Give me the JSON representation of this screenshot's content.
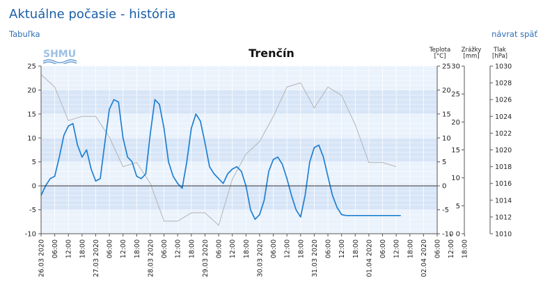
{
  "page": {
    "title": "Aktuálne počasie - história",
    "link_table": "Tabuľka",
    "link_back": "návrat späť",
    "logo_text": "SHMU"
  },
  "colors": {
    "title": "#1a5ea8",
    "link": "#2f6db5",
    "temperature": "#1e7fd0",
    "pressure": "#b4b4b4",
    "band_light": "#eaf2fc",
    "band_dark": "#d7e5f7"
  },
  "chart_data": {
    "type": "line",
    "title": "Trenčín",
    "axes": {
      "temperature": {
        "label_line1": "Teplota",
        "label_line2": "[°C]",
        "range": [
          -10,
          25
        ],
        "ticks": [
          -10,
          -5,
          0,
          5,
          10,
          15,
          20,
          25
        ]
      },
      "precipitation": {
        "label_line1": "Zrážky",
        "label_line2": "[mm]",
        "range": [
          0,
          30
        ],
        "ticks": [
          0,
          5,
          10,
          15,
          20,
          25,
          30
        ]
      },
      "pressure": {
        "label_line1": "Tlak",
        "label_line2": "[hPa]",
        "range": [
          1010,
          1030
        ],
        "ticks": [
          1010,
          1012,
          1014,
          1016,
          1018,
          1020,
          1022,
          1024,
          1026,
          1028,
          1030
        ]
      }
    },
    "x_range_hours": [
      0,
      174
    ],
    "x_tick_labels": [
      "26.03 2020",
      "06:00",
      "12:00",
      "18:00",
      "27.03 2020",
      "06:00",
      "12:00",
      "18:00",
      "28.03 2020",
      "06:00",
      "12:00",
      "18:00",
      "29.03 2020",
      "06:00",
      "12:00",
      "18:00",
      "30.03 2020",
      "06:00",
      "12:00",
      "18:00",
      "31.03 2020",
      "06:00",
      "12:00",
      "18:00",
      "01.04 2020",
      "06:00",
      "12:00",
      "18:00",
      "02.04 2020",
      "06:00",
      "12:00",
      "18:00"
    ],
    "series": [
      {
        "name": "Teplota [°C]",
        "axis": "temperature",
        "x": [
          0,
          2,
          4,
          6,
          8,
          10,
          12,
          14,
          16,
          18,
          20,
          22,
          24,
          26,
          28,
          30,
          32,
          34,
          36,
          38,
          40,
          42,
          44,
          46,
          48,
          50,
          52,
          54,
          56,
          58,
          60,
          62,
          64,
          66,
          68,
          70,
          72,
          74,
          76,
          78,
          80,
          82,
          84,
          86,
          88,
          90,
          92,
          94,
          96,
          98,
          100,
          102,
          104,
          106,
          108,
          110,
          112,
          114,
          116,
          118,
          120,
          122,
          124,
          126,
          128,
          130,
          132,
          134,
          136,
          138,
          140,
          142,
          144,
          146,
          148,
          150,
          152,
          154,
          156,
          158
        ],
        "values": [
          -2,
          0,
          1.5,
          2,
          6,
          10.5,
          12.5,
          13,
          8.5,
          6,
          7.5,
          3.5,
          1,
          1.5,
          9,
          16,
          18,
          17.5,
          10,
          6,
          5,
          2,
          1.5,
          2.5,
          11,
          18,
          17,
          12,
          5,
          2,
          0.5,
          -0.5,
          5,
          12,
          15,
          13.5,
          9,
          4,
          2.5,
          1.5,
          0.5,
          2.5,
          3.5,
          4,
          3,
          0,
          -5,
          -7,
          -6,
          -3,
          3,
          5.5,
          6,
          4.5,
          1.5,
          -2,
          -5,
          -6.5,
          -2,
          5,
          8,
          8.5,
          6,
          2,
          -2,
          -4.5,
          -6,
          -6.2,
          -6.2,
          -6.2,
          -6.2,
          -6.2,
          -6.2,
          -6.2,
          -6.2,
          -6.2,
          -6.2,
          -6.2,
          -6.2,
          -6.2
        ]
      },
      {
        "name": "Tlak [hPa]",
        "axis": "pressure",
        "x": [
          0,
          6,
          12,
          18,
          24,
          30,
          36,
          42,
          48,
          54,
          60,
          66,
          72,
          78,
          84,
          90,
          96,
          102,
          108,
          114,
          120,
          126,
          132,
          138,
          144,
          150,
          156
        ],
        "values": [
          1029,
          1027.5,
          1023.5,
          1024,
          1024,
          1021.5,
          1018,
          1018.5,
          1016,
          1011.5,
          1011.5,
          1012.5,
          1012.5,
          1011,
          1016.5,
          1019.5,
          1021,
          1024,
          1027.5,
          1028,
          1025,
          1027.5,
          1026.5,
          1023,
          1018.5,
          1018.5,
          1018
        ]
      }
    ]
  }
}
